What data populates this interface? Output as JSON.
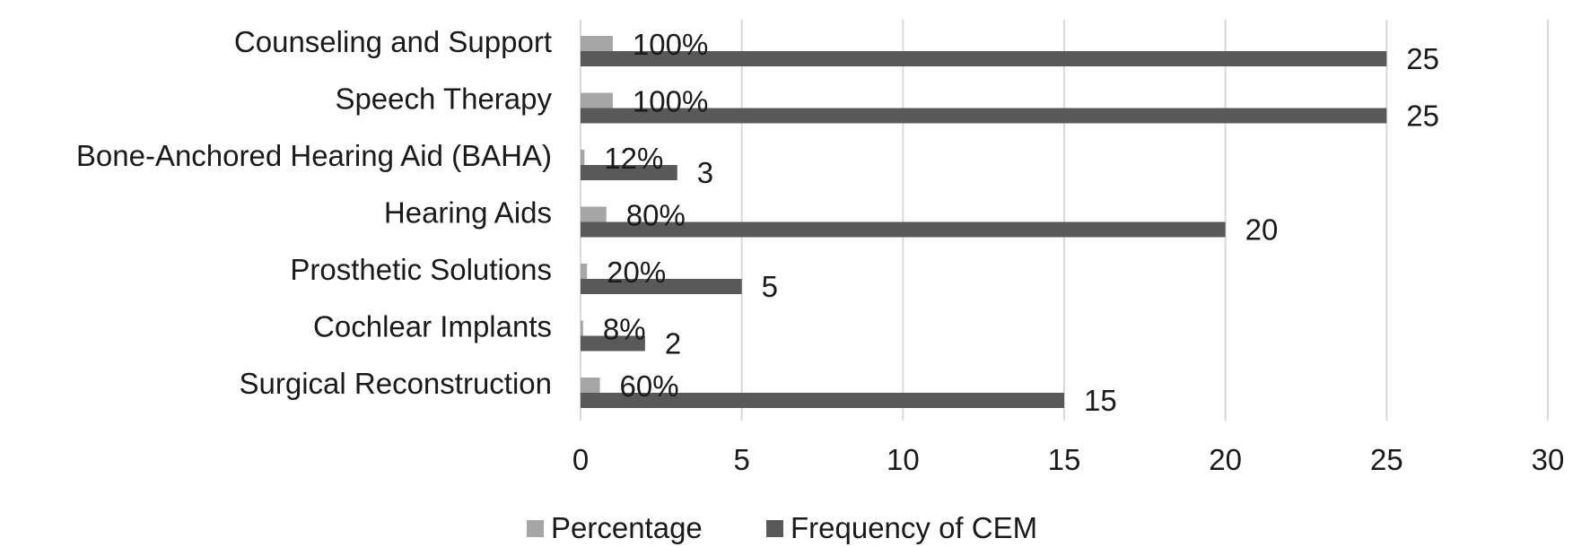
{
  "chart_data": {
    "type": "bar",
    "orientation": "horizontal",
    "categories": [
      "Counseling and Support",
      "Speech Therapy",
      "Bone-Anchored Hearing Aid (BAHA)",
      "Hearing Aids",
      "Prosthetic Solutions",
      "Cochlear Implants",
      "Surgical Reconstruction"
    ],
    "series": [
      {
        "name": "Percentage",
        "color": "#a6a6a6",
        "values": [
          1,
          1,
          0.12,
          0.8,
          0.2,
          0.08,
          0.6
        ],
        "labels": [
          "100%",
          "100%",
          "12%",
          "80%",
          "20%",
          "8%",
          "60%"
        ]
      },
      {
        "name": "Frequency of CEM",
        "color": "#595959",
        "values": [
          25,
          25,
          3,
          20,
          5,
          2,
          15
        ],
        "labels": [
          "25",
          "25",
          "3",
          "20",
          "5",
          "2",
          "15"
        ]
      }
    ],
    "xlim": [
      0,
      30
    ],
    "xticks": [
      "0",
      "5",
      "10",
      "15",
      "20",
      "25",
      "30"
    ],
    "grid": "vertical",
    "legend_position": "bottom",
    "title": "",
    "xlabel": "",
    "ylabel": ""
  }
}
